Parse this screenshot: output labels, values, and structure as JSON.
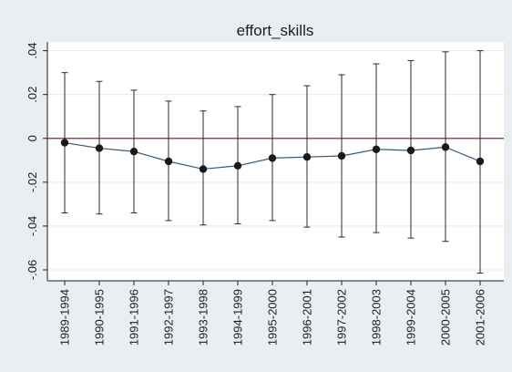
{
  "chart_data": {
    "type": "scatter",
    "title": "effort_skills",
    "xlabel": "",
    "ylabel": "",
    "categories": [
      "1989-1994",
      "1990-1995",
      "1991-1996",
      "1992-1997",
      "1993-1998",
      "1994-1999",
      "1995-2000",
      "1996-2001",
      "1997-2002",
      "1998-2003",
      "1999-2004",
      "2000-2005",
      "2001-2006"
    ],
    "series": [
      {
        "values": [
          -0.002,
          -0.0045,
          -0.006,
          -0.0105,
          -0.014,
          -0.0125,
          -0.009,
          -0.0085,
          -0.008,
          -0.005,
          -0.0055,
          -0.004,
          -0.0105
        ],
        "ci_low": [
          -0.034,
          -0.0345,
          -0.034,
          -0.0375,
          -0.0395,
          -0.039,
          -0.0375,
          -0.0405,
          -0.045,
          -0.043,
          -0.0455,
          -0.047,
          -0.0615
        ],
        "ci_high": [
          0.03,
          0.026,
          0.022,
          0.017,
          0.0125,
          0.0145,
          0.02,
          0.024,
          0.029,
          0.034,
          0.0355,
          0.0395,
          0.04
        ]
      }
    ],
    "yticks": [
      0.04,
      0.02,
      0,
      -0.02,
      -0.04,
      -0.06
    ],
    "ytick_labels": [
      ".04",
      ".02",
      "0",
      "-.02",
      "-.04",
      "-.06"
    ],
    "ylim": [
      -0.065,
      0.044
    ],
    "reference_line": 0,
    "grid": true,
    "legend": "none",
    "colors": {
      "background": "#e9eef3",
      "plot_area": "#ffffff",
      "grid": "#e4e9ee",
      "series_line": "#2e5b86",
      "marker": "#1a1a1a",
      "error_bar": "#2a2a2a",
      "reference_line": "#9b1b3b",
      "text": "#1e1e1e"
    }
  }
}
